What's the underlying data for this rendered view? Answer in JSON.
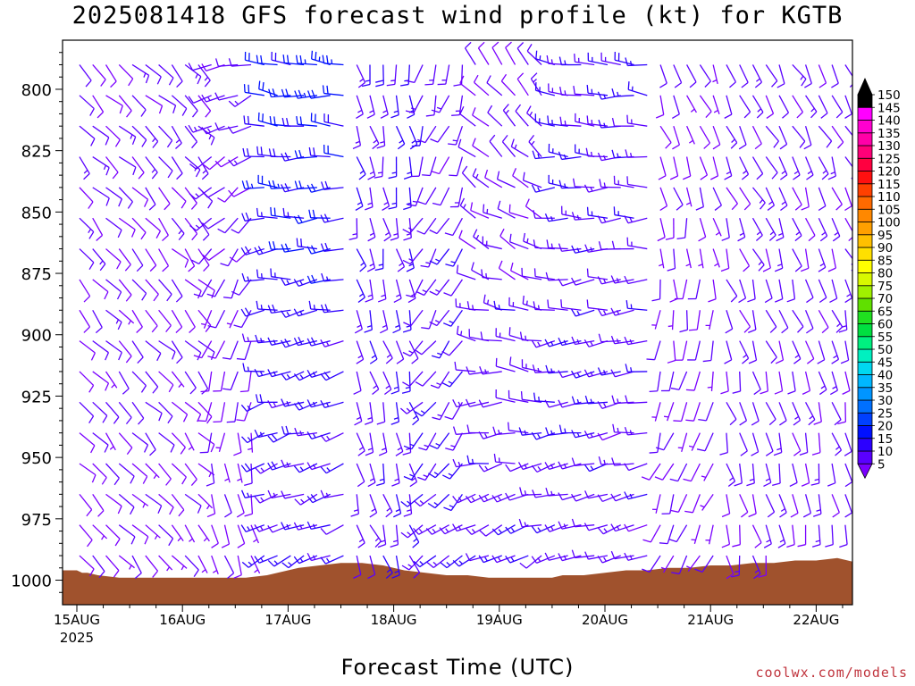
{
  "chart_data": {
    "type": "wind_barb_time_height",
    "title": "2025081418 GFS forecast wind profile (kt) for KGTB",
    "xlabel": "Forecast Time (UTC)",
    "ylabel": "",
    "credit": "coolwx.com/models",
    "y_axis": {
      "label_values": [
        800,
        825,
        850,
        875,
        900,
        925,
        950,
        975,
        1000
      ],
      "range_hpa": [
        780,
        1010
      ],
      "orientation": "pressure increases downward"
    },
    "x_axis": {
      "range_days": [
        "2025-08-14 18Z",
        "2025-08-22 06Z"
      ],
      "tick_labels": [
        "15AUG",
        "16AUG",
        "17AUG",
        "18AUG",
        "19AUG",
        "20AUG",
        "21AUG",
        "22AUG"
      ],
      "first_tick_sublabel": "2025"
    },
    "color_scale": {
      "unit": "kt",
      "labels": [
        5,
        10,
        15,
        20,
        25,
        30,
        35,
        40,
        45,
        50,
        55,
        60,
        65,
        70,
        75,
        80,
        85,
        90,
        95,
        100,
        105,
        110,
        115,
        120,
        125,
        130,
        135,
        140,
        145,
        150
      ],
      "colors": [
        "#7a00ff",
        "#5a00ff",
        "#2c00ff",
        "#0010ff",
        "#0040ff",
        "#0070ff",
        "#0095ff",
        "#00b8ff",
        "#00d8f0",
        "#00f0c0",
        "#00f080",
        "#00e040",
        "#20e020",
        "#60e000",
        "#a0f000",
        "#d8f800",
        "#ffff00",
        "#ffe000",
        "#ffc000",
        "#ffa000",
        "#ff8800",
        "#ff6a00",
        "#ff4000",
        "#ff1010",
        "#ff0040",
        "#ff0078",
        "#ff00a8",
        "#ff00d0",
        "#ff00ff",
        "#000000"
      ]
    },
    "terrain": {
      "description": "surface pressure (hPa) along forecast time",
      "color": "#a0522d",
      "points": [
        [
          0,
          996
        ],
        [
          0.05,
          997
        ],
        [
          0.1,
          997
        ],
        [
          0.2,
          998
        ],
        [
          0.4,
          999
        ],
        [
          0.6,
          999
        ],
        [
          0.8,
          999
        ],
        [
          1.0,
          999
        ],
        [
          1.2,
          999
        ],
        [
          1.4,
          999
        ],
        [
          1.6,
          999
        ],
        [
          1.8,
          998
        ],
        [
          2.0,
          996
        ],
        [
          2.1,
          995
        ],
        [
          2.3,
          994
        ],
        [
          2.5,
          993
        ],
        [
          2.7,
          993
        ],
        [
          2.9,
          994
        ],
        [
          3.1,
          996
        ],
        [
          3.3,
          997
        ],
        [
          3.5,
          998
        ],
        [
          3.7,
          998
        ],
        [
          3.9,
          999
        ],
        [
          4.1,
          999
        ],
        [
          4.3,
          999
        ],
        [
          4.5,
          999
        ],
        [
          4.6,
          998
        ],
        [
          4.8,
          998
        ],
        [
          5.0,
          997
        ],
        [
          5.2,
          996
        ],
        [
          5.4,
          996
        ],
        [
          5.6,
          995
        ],
        [
          5.8,
          995
        ],
        [
          6.0,
          994
        ],
        [
          6.2,
          994
        ],
        [
          6.4,
          993
        ],
        [
          6.6,
          993
        ],
        [
          6.8,
          992
        ],
        [
          7.0,
          992
        ],
        [
          7.2,
          991
        ],
        [
          7.3,
          992
        ],
        [
          7.4,
          993
        ],
        [
          7.45,
          993
        ]
      ]
    },
    "wind_regimes": [
      {
        "start_day": 0.0,
        "end_day": 1.2,
        "low_dir": 140,
        "high_dir": 135,
        "low_spd": 8,
        "high_spd": 12
      },
      {
        "start_day": 1.2,
        "end_day": 1.7,
        "low_dir": 160,
        "high_dir": 260,
        "low_spd": 8,
        "high_spd": 12
      },
      {
        "start_day": 1.7,
        "end_day": 2.55,
        "low_dir": 245,
        "high_dir": 280,
        "low_spd": 14,
        "high_spd": 22
      },
      {
        "start_day": 2.55,
        "end_day": 3.2,
        "low_dir": 160,
        "high_dir": 170,
        "low_spd": 13,
        "high_spd": 16
      },
      {
        "start_day": 3.2,
        "end_day": 3.75,
        "low_dir": 230,
        "high_dir": 195,
        "low_spd": 14,
        "high_spd": 12
      },
      {
        "start_day": 3.75,
        "end_day": 4.5,
        "low_dir": 245,
        "high_dir": 330,
        "low_spd": 14,
        "high_spd": 10
      },
      {
        "start_day": 4.5,
        "end_day": 5.5,
        "low_dir": 255,
        "high_dir": 275,
        "low_spd": 12,
        "high_spd": 15
      },
      {
        "start_day": 5.5,
        "end_day": 6.1,
        "low_dir": 210,
        "high_dir": 150,
        "low_spd": 9,
        "high_spd": 9
      },
      {
        "start_day": 6.1,
        "end_day": 7.45,
        "low_dir": 170,
        "high_dir": 150,
        "low_spd": 11,
        "high_spd": 12
      }
    ]
  }
}
